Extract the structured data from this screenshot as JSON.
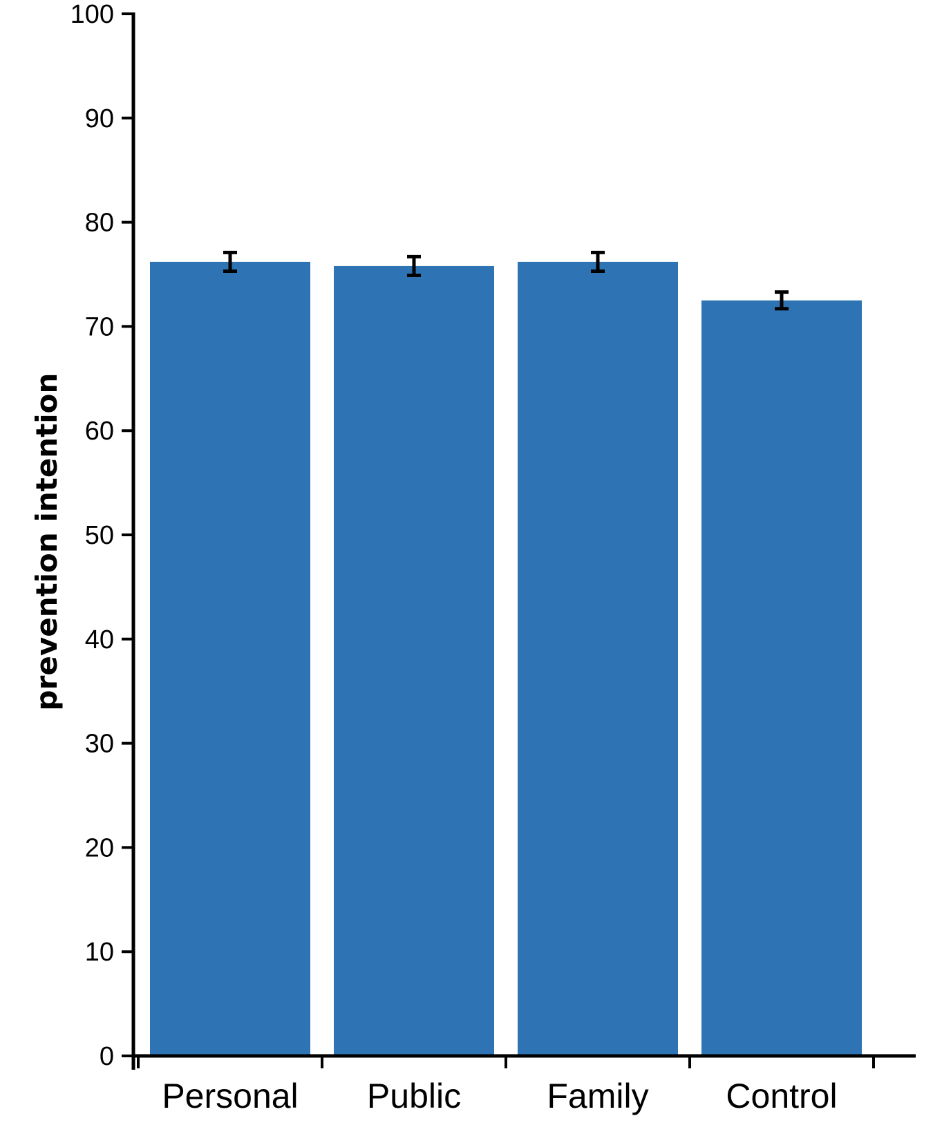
{
  "chart_data": {
    "type": "bar",
    "title": "",
    "xlabel": "",
    "ylabel": "prevention intention",
    "categories": [
      "Personal",
      "Public",
      "Family",
      "Control"
    ],
    "values": [
      76.2,
      75.8,
      76.2,
      72.5
    ],
    "error": [
      0.9,
      0.9,
      0.9,
      0.8
    ],
    "ylim": [
      0,
      100
    ],
    "yticks": [
      0,
      10,
      20,
      30,
      40,
      50,
      60,
      70,
      80,
      90,
      100
    ],
    "bar_color": "#2e74b5",
    "grid": false,
    "legend": "none"
  }
}
